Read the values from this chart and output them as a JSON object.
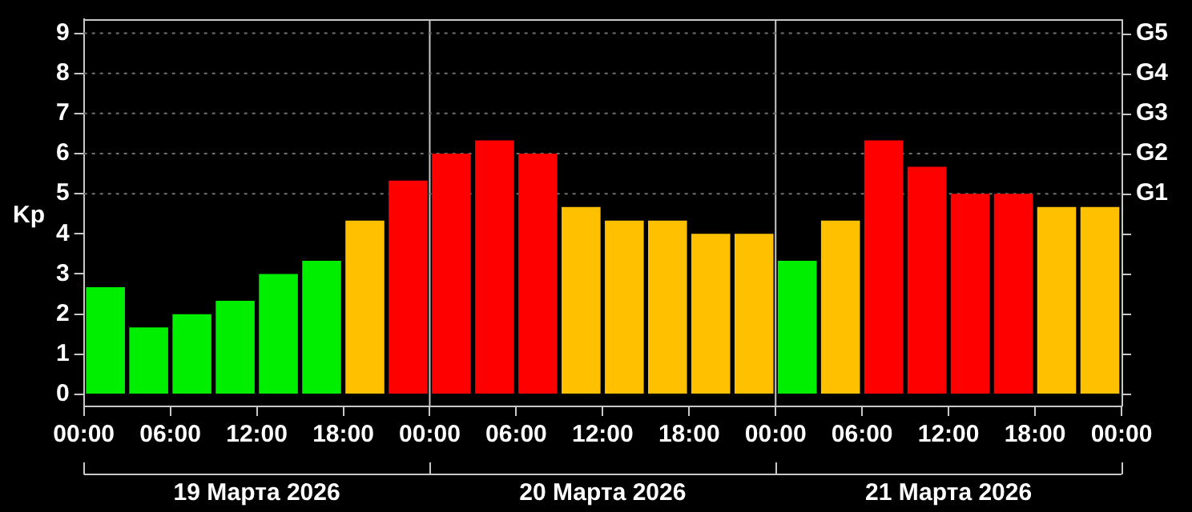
{
  "chart_data": {
    "type": "bar",
    "ylabel": "Kp",
    "x": [
      "2026-03-19T01:30",
      "2026-03-19T04:30",
      "2026-03-19T07:30",
      "2026-03-19T10:30",
      "2026-03-19T13:30",
      "2026-03-19T16:30",
      "2026-03-19T19:30",
      "2026-03-19T22:30",
      "2026-03-20T01:30",
      "2026-03-20T04:30",
      "2026-03-20T07:30",
      "2026-03-20T10:30",
      "2026-03-20T13:30",
      "2026-03-20T16:30",
      "2026-03-20T19:30",
      "2026-03-20T22:30",
      "2026-03-21T01:30",
      "2026-03-21T04:30",
      "2026-03-21T07:30",
      "2026-03-21T10:30",
      "2026-03-21T13:30",
      "2026-03-21T16:30",
      "2026-03-21T19:30",
      "2026-03-21T22:30"
    ],
    "values": [
      2.67,
      1.67,
      2,
      2.33,
      3,
      3.33,
      4.33,
      5.33,
      6,
      6.33,
      6,
      4.67,
      4.33,
      4.33,
      4,
      4,
      3.33,
      4.33,
      6.33,
      5.67,
      5,
      5,
      4.67,
      4.67
    ],
    "colors": [
      "#00ee00",
      "#00ee00",
      "#00ee00",
      "#00ee00",
      "#00ee00",
      "#00ee00",
      "#ffc000",
      "#ff0000",
      "#ff0000",
      "#ff0000",
      "#ff0000",
      "#ffc000",
      "#ffc000",
      "#ffc000",
      "#ffc000",
      "#ffc000",
      "#00ee00",
      "#ffc000",
      "#ff0000",
      "#ff0000",
      "#ff0000",
      "#ff0000",
      "#ffc000",
      "#ffc000"
    ],
    "xlim": [
      "2026-03-19T00:00",
      "2026-03-22T00:00"
    ],
    "xticks": [
      {
        "value": "2026-03-19T00:00",
        "label": "00:00"
      },
      {
        "value": "2026-03-19T06:00",
        "label": "06:00"
      },
      {
        "value": "2026-03-19T12:00",
        "label": "12:00"
      },
      {
        "value": "2026-03-19T18:00",
        "label": "18:00"
      },
      {
        "value": "2026-03-20T00:00",
        "label": "00:00"
      },
      {
        "value": "2026-03-20T06:00",
        "label": "06:00"
      },
      {
        "value": "2026-03-20T12:00",
        "label": "12:00"
      },
      {
        "value": "2026-03-20T18:00",
        "label": "18:00"
      },
      {
        "value": "2026-03-21T00:00",
        "label": "00:00"
      },
      {
        "value": "2026-03-21T06:00",
        "label": "06:00"
      },
      {
        "value": "2026-03-21T12:00",
        "label": "12:00"
      },
      {
        "value": "2026-03-21T18:00",
        "label": "18:00"
      },
      {
        "value": "2026-03-22T00:00",
        "label": "00:00"
      }
    ],
    "ylim": [
      -0.3,
      9.35
    ],
    "yticks": [
      0,
      1,
      2,
      3,
      4,
      5,
      6,
      7,
      8,
      9
    ],
    "ref_lines": [
      {
        "axis": "x",
        "value": "2026-03-20T00:00",
        "color": "#c8c8c8",
        "line_style": "solid"
      },
      {
        "axis": "x",
        "value": "2026-03-21T00:00",
        "color": "#c8c8c8",
        "line_style": "solid"
      },
      {
        "axis": "y",
        "value": 5,
        "label": "G1",
        "color": "#707070",
        "line_style": "dotted"
      },
      {
        "axis": "y",
        "value": 6,
        "label": "G2",
        "color": "#707070",
        "line_style": "dotted"
      },
      {
        "axis": "y",
        "value": 7,
        "label": "G3",
        "color": "#707070",
        "line_style": "dotted"
      },
      {
        "axis": "y",
        "value": 8,
        "label": "G4",
        "color": "#707070",
        "line_style": "dotted"
      },
      {
        "axis": "y",
        "value": 9,
        "label": "G5",
        "color": "#707070",
        "line_style": "dotted"
      }
    ],
    "annotations": [
      "19 Марта 2026",
      "20 Марта 2026",
      "21 Марта 2026"
    ],
    "grid": false,
    "legend": false
  }
}
